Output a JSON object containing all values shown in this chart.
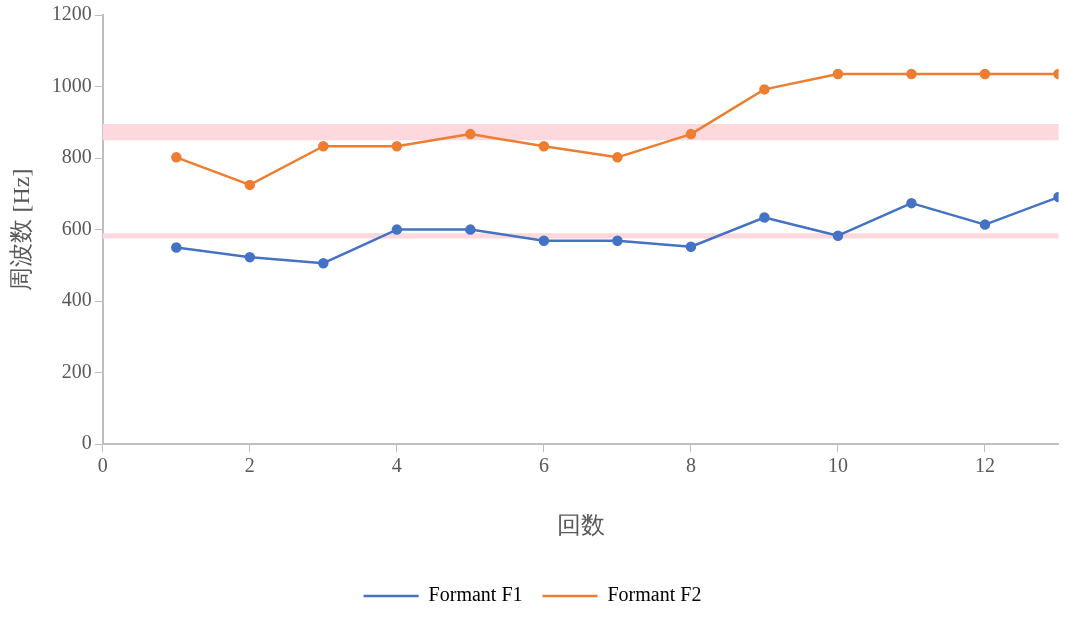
{
  "chart_data": {
    "type": "line",
    "xlabel": "回数",
    "ylabel": "周波数 [Hz]",
    "x": [
      1,
      2,
      3,
      4,
      5,
      6,
      7,
      8,
      9,
      10,
      11,
      12,
      13
    ],
    "series": [
      {
        "name": "Formant F1",
        "color": "#4472c4",
        "values": [
          550,
          523,
          506,
          600,
          600,
          569,
          569,
          552,
          634,
          583,
          674,
          614,
          691
        ]
      },
      {
        "name": "Formant F2",
        "color": "#ed7d31",
        "values": [
          802,
          725,
          833,
          833,
          867,
          833,
          802,
          867,
          992,
          1035,
          1035,
          1035,
          1035
        ]
      }
    ],
    "bands": [
      {
        "axis": "y",
        "from": 850,
        "to": 895,
        "color": "#fdd8dc"
      },
      {
        "axis": "y",
        "from": 575,
        "to": 590,
        "color": "#fdd8dc"
      }
    ],
    "xlim": [
      0,
      13
    ],
    "xticks": [
      0,
      2,
      4,
      6,
      8,
      10,
      12
    ],
    "ylim": [
      0,
      1200
    ],
    "yticks": [
      0,
      200,
      400,
      600,
      800,
      1000,
      1200
    ],
    "grid": false,
    "legend": "bottom",
    "marker": "circle",
    "line_style": "solid"
  }
}
